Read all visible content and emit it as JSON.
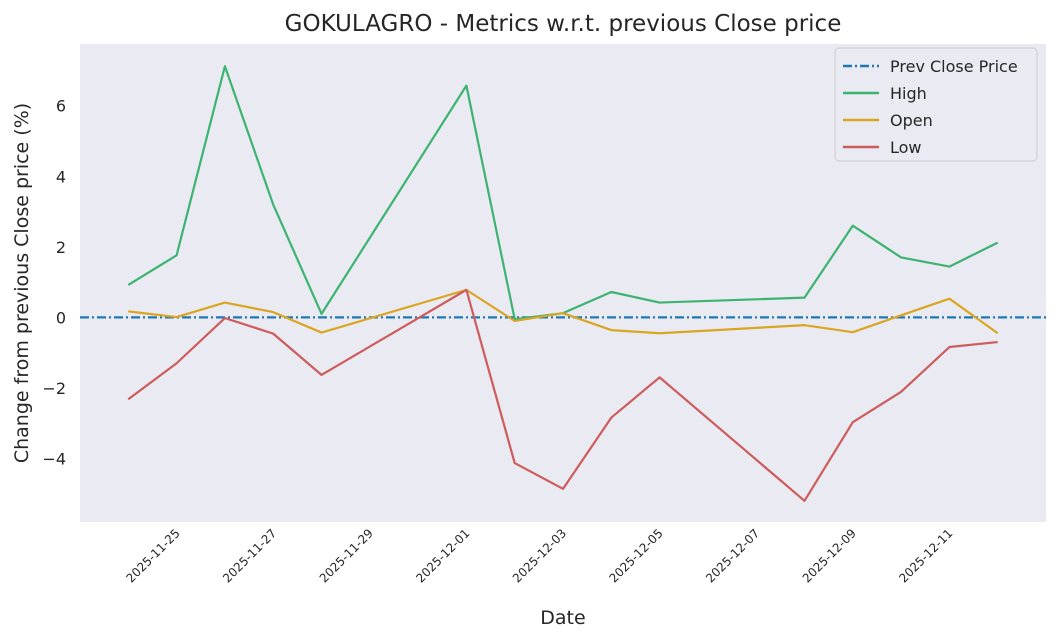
{
  "chart_data": {
    "type": "line",
    "title": "GOKULAGRO - Metrics w.r.t. previous Close price",
    "xlabel": "Date",
    "ylabel": "Change from previous Close price (%)",
    "x": [
      "2025-11-24",
      "2025-11-25",
      "2025-11-26",
      "2025-11-27",
      "2025-11-28",
      "2025-12-01",
      "2025-12-02",
      "2025-12-03",
      "2025-12-04",
      "2025-12-05",
      "2025-12-08",
      "2025-12-09",
      "2025-12-10",
      "2025-12-11",
      "2025-12-12"
    ],
    "xlim": [
      "2025-11-23",
      "2025-12-13"
    ],
    "xticks": [
      "2025-11-25",
      "2025-11-27",
      "2025-11-29",
      "2025-12-01",
      "2025-12-03",
      "2025-12-05",
      "2025-12-07",
      "2025-12-09",
      "2025-12-11"
    ],
    "ylim": [
      -5.8,
      7.75
    ],
    "yticks": [
      -4,
      -2,
      0,
      2,
      4,
      6
    ],
    "ytick_labels": [
      "−4",
      "−2",
      "0",
      "2",
      "4",
      "6"
    ],
    "grid": false,
    "legend_position": "top-right",
    "series": [
      {
        "name": "Prev Close Price",
        "color": "#1f77b4",
        "style": "dashdot",
        "values": [
          0,
          0,
          0,
          0,
          0,
          0,
          0,
          0,
          0,
          0,
          0,
          0,
          0,
          0,
          0
        ]
      },
      {
        "name": "High",
        "color": "#3cb371",
        "style": "solid",
        "values": [
          0.92,
          1.76,
          7.12,
          3.2,
          0.1,
          6.57,
          -0.05,
          0.12,
          0.72,
          0.42,
          0.56,
          2.6,
          1.7,
          1.44,
          2.12
        ]
      },
      {
        "name": "Open",
        "color": "#daa520",
        "style": "solid",
        "values": [
          0.17,
          0.01,
          0.42,
          0.15,
          -0.43,
          0.78,
          -0.1,
          0.12,
          -0.36,
          -0.45,
          -0.22,
          -0.42,
          0.06,
          0.53,
          -0.45
        ]
      },
      {
        "name": "Low",
        "color": "#cd5c5c",
        "style": "solid",
        "values": [
          -2.32,
          -1.3,
          -0.02,
          -0.46,
          -1.63,
          0.78,
          -4.13,
          -4.86,
          -2.84,
          -1.7,
          -5.2,
          -2.97,
          -2.11,
          -0.84,
          -0.7
        ]
      }
    ]
  }
}
